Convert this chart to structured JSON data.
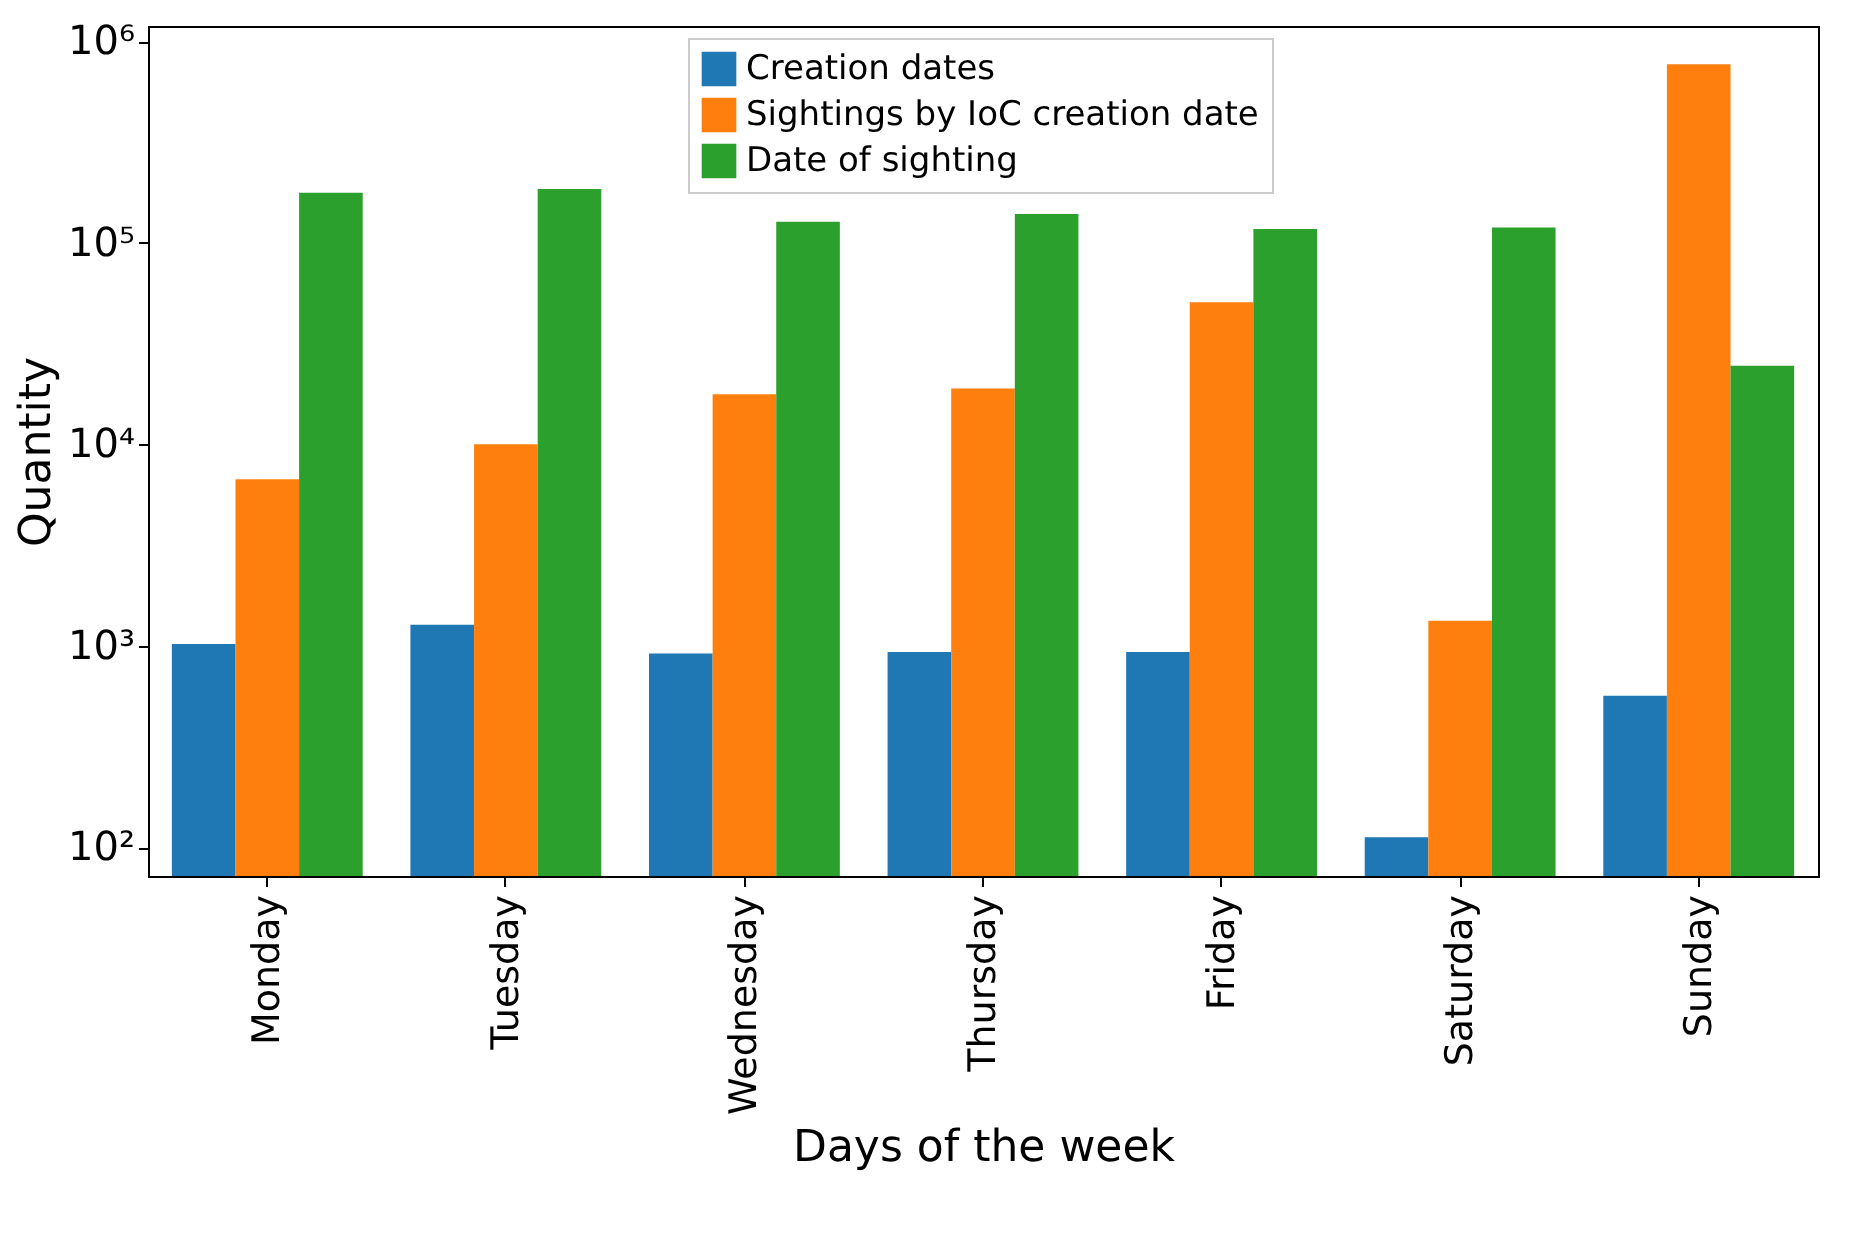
{
  "chart_data": {
    "type": "bar",
    "xlabel": "Days of the week",
    "ylabel": "Quantity",
    "categories": [
      "Monday",
      "Tuesday",
      "Wednesday",
      "Thursday",
      "Friday",
      "Saturday",
      "Sunday"
    ],
    "series": [
      {
        "name": "Creation dates",
        "color": "#1f77b4",
        "values": [
          1020,
          1270,
          915,
          930,
          930,
          112,
          565
        ]
      },
      {
        "name": "Sightings by IoC creation date",
        "color": "#ff7f0e",
        "values": [
          6700,
          10000,
          17700,
          18900,
          50700,
          1330,
          769000
        ]
      },
      {
        "name": "Date of sighting",
        "color": "#2ca02c",
        "values": [
          177000,
          185000,
          127000,
          139000,
          117000,
          119000,
          24500
        ]
      }
    ],
    "log": "y",
    "ylim": [
      72,
      1190000
    ],
    "yticks": [
      {
        "value": 100,
        "label": "10²"
      },
      {
        "value": 1000,
        "label": "10³"
      },
      {
        "value": 10000,
        "label": "10⁴"
      },
      {
        "value": 100000,
        "label": "10⁵"
      },
      {
        "value": 1000000,
        "label": "10⁶"
      }
    ],
    "grid": false,
    "legend": "top"
  }
}
